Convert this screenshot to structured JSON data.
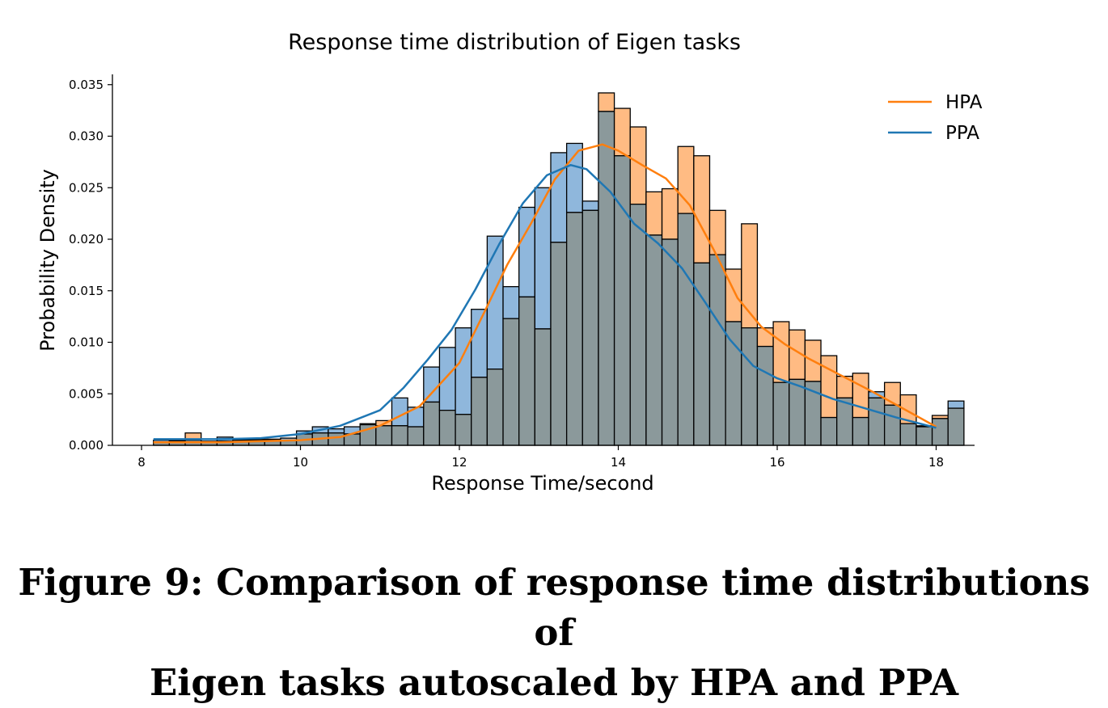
{
  "chart_data": {
    "type": "bar",
    "title": "Response time distribution of Eigen tasks",
    "xlabel": "Response Time/second",
    "ylabel": "Probability Density",
    "xlim": [
      7.85,
      18.5
    ],
    "ylim": [
      0,
      0.036
    ],
    "xticks": [
      8,
      10,
      12,
      14,
      16,
      18
    ],
    "yticks": [
      0.0,
      0.005,
      0.01,
      0.015,
      0.02,
      0.025,
      0.03,
      0.035
    ],
    "ytick_labels": [
      "0.000",
      "0.005",
      "0.010",
      "0.015",
      "0.020",
      "0.025",
      "0.030",
      "0.035"
    ],
    "grid": false,
    "legend_position": "top-right",
    "bin_start": 8.15,
    "bin_width": 0.2,
    "series": [
      {
        "name": "HPA",
        "color": "#ff7f0e",
        "hist_fill": "#ffbb83",
        "density": [
          0.0003,
          0.0004,
          0.0012,
          0.0004,
          0.0004,
          0.0005,
          0.0005,
          0.0005,
          0.0005,
          0.0011,
          0.0012,
          0.0012,
          0.0011,
          0.002,
          0.0024,
          0.0019,
          0.0018,
          0.0042,
          0.0034,
          0.003,
          0.0066,
          0.0074,
          0.0123,
          0.0144,
          0.0113,
          0.0197,
          0.0226,
          0.0228,
          0.0342,
          0.0327,
          0.0309,
          0.0246,
          0.0249,
          0.029,
          0.0281,
          0.0228,
          0.0171,
          0.0215,
          0.0114,
          0.012,
          0.0112,
          0.0102,
          0.0087,
          0.0067,
          0.007,
          0.0046,
          0.0061,
          0.0049,
          0.0018,
          0.0029,
          0.0036
        ],
        "kde_x": [
          8.15,
          8.5,
          9.0,
          9.5,
          10.0,
          10.5,
          11.0,
          11.5,
          12.0,
          12.3,
          12.6,
          12.9,
          13.2,
          13.5,
          13.8,
          14.0,
          14.3,
          14.6,
          14.9,
          15.2,
          15.5,
          15.8,
          16.1,
          16.4,
          16.8,
          17.2,
          17.6,
          18.0
        ],
        "kde_y": [
          0.0003,
          0.0003,
          0.0003,
          0.0004,
          0.0005,
          0.0008,
          0.0019,
          0.0038,
          0.008,
          0.0127,
          0.0175,
          0.0215,
          0.0258,
          0.0286,
          0.0292,
          0.0286,
          0.0272,
          0.0259,
          0.0233,
          0.019,
          0.0143,
          0.0115,
          0.0098,
          0.0084,
          0.0068,
          0.0052,
          0.0035,
          0.0018
        ]
      },
      {
        "name": "PPA",
        "color": "#1f77b4",
        "hist_fill": "#8fb7dc",
        "density": [
          0.0005,
          0.0005,
          0.0005,
          0.0004,
          0.0008,
          0.0006,
          0.0006,
          0.0006,
          0.0007,
          0.0014,
          0.0018,
          0.0016,
          0.0018,
          0.0021,
          0.0019,
          0.0046,
          0.0037,
          0.0076,
          0.0095,
          0.0114,
          0.0132,
          0.0203,
          0.0154,
          0.0231,
          0.025,
          0.0284,
          0.0293,
          0.0237,
          0.0324,
          0.0281,
          0.0234,
          0.0204,
          0.02,
          0.0225,
          0.0177,
          0.0185,
          0.012,
          0.0114,
          0.0096,
          0.0061,
          0.0064,
          0.0062,
          0.0027,
          0.0046,
          0.0027,
          0.0052,
          0.0039,
          0.0021,
          0.0019,
          0.0026,
          0.0043
        ],
        "kde_x": [
          8.15,
          8.5,
          9.0,
          9.5,
          10.0,
          10.5,
          11.0,
          11.3,
          11.6,
          11.9,
          12.2,
          12.5,
          12.8,
          13.1,
          13.4,
          13.6,
          13.9,
          14.2,
          14.5,
          14.8,
          15.1,
          15.4,
          15.7,
          16.0,
          16.3,
          16.7,
          17.1,
          17.5,
          18.0
        ],
        "kde_y": [
          0.0006,
          0.0006,
          0.0006,
          0.0007,
          0.0011,
          0.0019,
          0.0034,
          0.0056,
          0.0083,
          0.0112,
          0.0151,
          0.0195,
          0.0235,
          0.0262,
          0.0272,
          0.0268,
          0.0246,
          0.0215,
          0.0196,
          0.0172,
          0.0138,
          0.0103,
          0.0077,
          0.0065,
          0.0057,
          0.0045,
          0.0036,
          0.0027,
          0.0017
        ]
      }
    ],
    "overlap_fill": "#8b999b"
  },
  "caption": {
    "line1": "Figure 9: Comparison of response time distributions of",
    "line2": "Eigen tasks autoscaled by HPA and PPA"
  }
}
